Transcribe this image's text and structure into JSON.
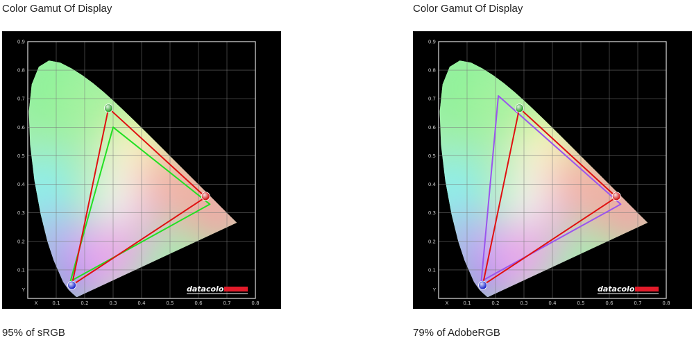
{
  "panels": [
    {
      "title": "Color Gamut Of Display",
      "caption": "95% of sRGB",
      "chart_data": {
        "type": "scatter",
        "title": "",
        "xlabel": "",
        "ylabel": "",
        "xlim": [
          0,
          0.8
        ],
        "ylim": [
          0,
          0.9
        ],
        "axis_letters": {
          "x": "X",
          "y": "Y"
        },
        "x_ticks": [
          "0.1",
          "0.2",
          "0.3",
          "0.4",
          "0.5",
          "0.6",
          "0.7",
          "0.8"
        ],
        "y_ticks": [
          "0.1",
          "0.2",
          "0.3",
          "0.4",
          "0.5",
          "0.6",
          "0.7",
          "0.8",
          "0.9"
        ],
        "grid": true,
        "brand": "datacolor",
        "series": [
          {
            "color": "#e01010",
            "primaries": [
              [
                0.625,
                0.355
              ],
              [
                0.284,
                0.667
              ],
              [
                0.155,
                0.046
              ]
            ]
          },
          {
            "color": "#22e022",
            "primaries": [
              [
                0.64,
                0.33
              ],
              [
                0.3,
                0.6
              ],
              [
                0.15,
                0.06
              ]
            ]
          }
        ],
        "markers": [
          {
            "color": "#d01818",
            "x": 0.625,
            "y": 0.358
          },
          {
            "color": "#2aa02a",
            "x": 0.284,
            "y": 0.667
          },
          {
            "color": "#1a24cc",
            "x": 0.155,
            "y": 0.046
          }
        ]
      }
    },
    {
      "title": "Color Gamut Of Display",
      "caption": "79% of AdobeRGB",
      "chart_data": {
        "type": "scatter",
        "title": "",
        "xlabel": "",
        "ylabel": "",
        "xlim": [
          0,
          0.8
        ],
        "ylim": [
          0,
          0.9
        ],
        "axis_letters": {
          "x": "X",
          "y": "Y"
        },
        "x_ticks": [
          "0.1",
          "0.2",
          "0.3",
          "0.4",
          "0.5",
          "0.6",
          "0.7",
          "0.8"
        ],
        "y_ticks": [
          "0.1",
          "0.2",
          "0.3",
          "0.4",
          "0.5",
          "0.6",
          "0.7",
          "0.8",
          "0.9"
        ],
        "grid": true,
        "brand": "datacolor",
        "series": [
          {
            "color": "#e01010",
            "primaries": [
              [
                0.625,
                0.355
              ],
              [
                0.284,
                0.667
              ],
              [
                0.155,
                0.046
              ]
            ]
          },
          {
            "color": "#9a55ee",
            "primaries": [
              [
                0.64,
                0.33
              ],
              [
                0.21,
                0.71
              ],
              [
                0.15,
                0.06
              ]
            ]
          }
        ],
        "markers": [
          {
            "color": "#d01818",
            "x": 0.625,
            "y": 0.358
          },
          {
            "color": "#2aa02a",
            "x": 0.284,
            "y": 0.667
          },
          {
            "color": "#1a24cc",
            "x": 0.155,
            "y": 0.046
          }
        ]
      }
    }
  ]
}
